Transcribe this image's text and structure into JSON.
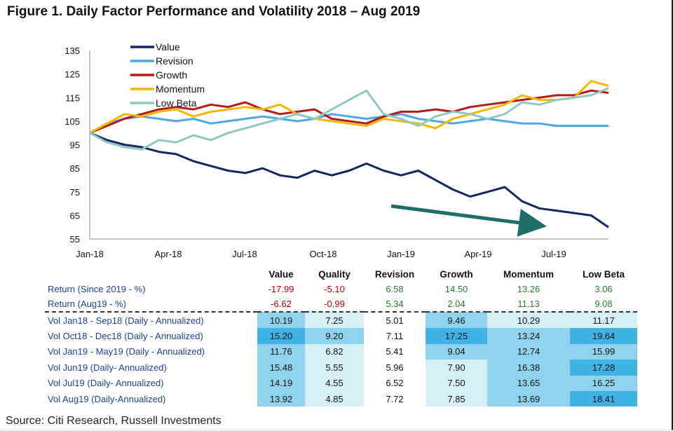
{
  "title": "Figure 1. Daily Factor Performance and Volatility 2018 – Aug 2019",
  "source": "Source: Citi Research, Russell Investments",
  "chart_data": {
    "type": "line",
    "ylim": [
      55,
      135
    ],
    "yticks": [
      "135",
      "125",
      "115",
      "105",
      "95",
      "85",
      "75",
      "65",
      "55"
    ],
    "xticks": [
      "Jan-18",
      "Apr-18",
      "Jul-18",
      "Oct-18",
      "Jan-19",
      "Apr-19",
      "Jul-19"
    ],
    "legend_position": "top-left",
    "series": [
      {
        "name": "Value",
        "color": "#16275e",
        "values": [
          100,
          97,
          95,
          94,
          92,
          91,
          88,
          86,
          84,
          83,
          85,
          82,
          81,
          84,
          82,
          84,
          87,
          84,
          82,
          84,
          80,
          76,
          73,
          75,
          77,
          71,
          68,
          67,
          66,
          65,
          60
        ]
      },
      {
        "name": "Revision",
        "color": "#4aa8e8",
        "values": [
          100,
          104,
          106,
          107,
          106,
          105,
          106,
          104,
          105,
          106,
          107,
          106,
          105,
          106,
          108,
          107,
          106,
          107,
          108,
          106,
          105,
          104,
          105,
          106,
          105,
          104,
          104,
          103,
          103,
          103,
          103
        ]
      },
      {
        "name": "Growth",
        "color": "#b51a1a",
        "values": [
          100,
          103,
          106,
          108,
          110,
          111,
          110,
          112,
          111,
          113,
          110,
          108,
          109,
          110,
          106,
          105,
          104,
          107,
          109,
          109,
          110,
          109,
          111,
          112,
          113,
          114,
          115,
          116,
          116,
          118,
          117
        ]
      },
      {
        "name": "Momentum",
        "color": "#f2b700",
        "values": [
          100,
          104,
          108,
          107,
          109,
          110,
          107,
          109,
          110,
          111,
          110,
          112,
          108,
          106,
          105,
          104,
          103,
          106,
          105,
          104,
          102,
          106,
          108,
          110,
          112,
          116,
          114,
          114,
          115,
          122,
          120
        ]
      },
      {
        "name": "Low Beta",
        "color": "#8ec8c4",
        "values": [
          100,
          96,
          94,
          93,
          97,
          96,
          99,
          97,
          100,
          102,
          104,
          106,
          108,
          106,
          110,
          114,
          118,
          108,
          106,
          103,
          107,
          109,
          108,
          106,
          108,
          113,
          112,
          114,
          115,
          116,
          119
        ]
      }
    ]
  },
  "table": {
    "columns": [
      "Value",
      "Quality",
      "Revision",
      "Growth",
      "Momentum",
      "Low Beta"
    ],
    "returns": [
      {
        "label": "Return (Since 2019 - %)",
        "values": [
          "-17.99",
          "-5.10",
          "6.58",
          "14.50",
          "13.26",
          "3.06"
        ]
      },
      {
        "label": "Return (Aug19 - %)",
        "values": [
          "-6.62",
          "-0.99",
          "5.34",
          "2.04",
          "11.13",
          "9.08"
        ]
      }
    ],
    "vol": [
      {
        "label": "Vol Jan18 - Sep18 (Daily - Annualized)",
        "values": [
          "10.19",
          "7.25",
          "5.01",
          "9.46",
          "10.29",
          "11.17"
        ]
      },
      {
        "label": "Vol Oct18 - Dec18 (Daily - Annualized)",
        "values": [
          "15.20",
          "9.20",
          "7.11",
          "17.25",
          "13.24",
          "19.64"
        ]
      },
      {
        "label": "Vol Jan19 - May19 (Daily - Annualized)",
        "values": [
          "11.76",
          "6.82",
          "5.41",
          "9.04",
          "12.74",
          "15.99"
        ]
      },
      {
        "label": "Vol Jun19 (Daily- Annualized)",
        "values": [
          "15.48",
          "5.55",
          "5.96",
          "7.90",
          "16.38",
          "17.28"
        ]
      },
      {
        "label": "Vol Jul19 (Daily- Annualized)",
        "values": [
          "14.19",
          "4.55",
          "6.52",
          "7.50",
          "13.65",
          "16.25"
        ]
      },
      {
        "label": "Vol Aug19 (Daily-Annualized)",
        "values": [
          "13.92",
          "4.85",
          "7.72",
          "7.85",
          "13.69",
          "18.41"
        ]
      }
    ]
  }
}
